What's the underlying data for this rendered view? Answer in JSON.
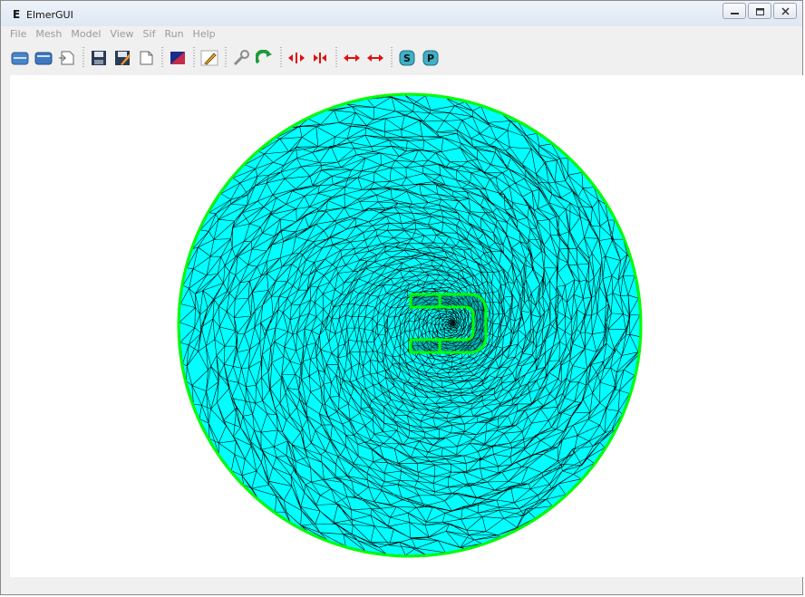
{
  "window": {
    "title": "ElmerGUI",
    "app_icon_letter": "E"
  },
  "menubar": {
    "items": [
      "File",
      "Mesh",
      "Model",
      "View",
      "Sif",
      "Run",
      "Help"
    ]
  },
  "toolbar": {
    "buttons": [
      {
        "name": "open-icon"
      },
      {
        "name": "load-icon"
      },
      {
        "name": "new-icon"
      },
      {
        "name": "save-icon"
      },
      {
        "name": "save-as-icon"
      },
      {
        "name": "edit-icon"
      },
      {
        "name": "image-icon"
      },
      {
        "name": "pencil-icon"
      },
      {
        "name": "wrench-icon"
      },
      {
        "name": "refresh-icon"
      },
      {
        "name": "divide-surface-icon"
      },
      {
        "name": "unify-surface-icon"
      },
      {
        "name": "divide-edge-icon"
      },
      {
        "name": "unify-edge-icon"
      },
      {
        "name": "solver-icon",
        "label": "S"
      },
      {
        "name": "postprocess-icon",
        "label": "P"
      }
    ]
  },
  "colors": {
    "mesh_fill": "#00ffff",
    "mesh_lines": "#000000",
    "boundary": "#00ff00",
    "menu_text_disabled": "#9a9a9a"
  }
}
